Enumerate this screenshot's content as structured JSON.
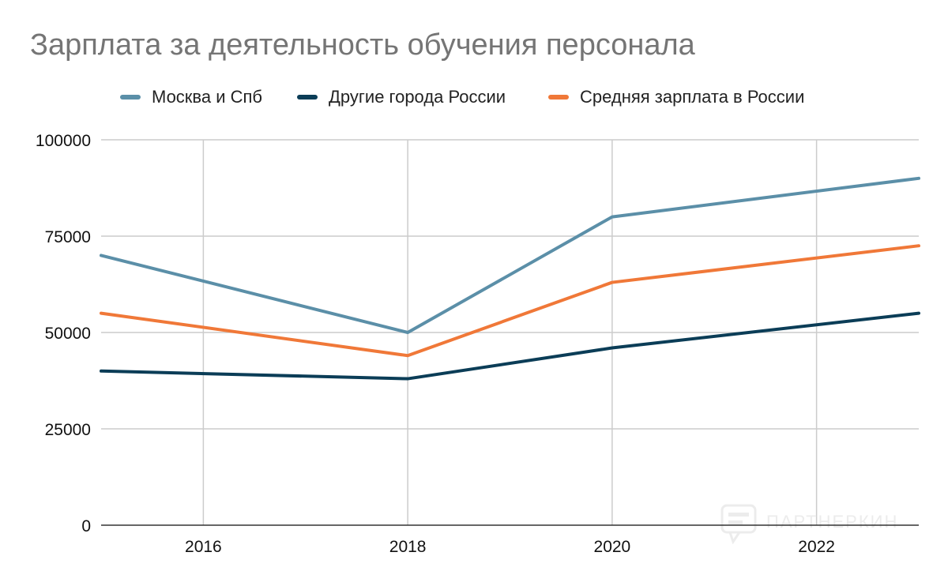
{
  "chart_data": {
    "type": "line",
    "title": "Зарплата за деятельность обучения персонала",
    "xlabel": "",
    "ylabel": "",
    "x": [
      2015,
      2018,
      2020,
      2023
    ],
    "xticks": [
      "2016",
      "2018",
      "2020",
      "2022"
    ],
    "xlim": [
      2015,
      2023
    ],
    "yticks": [
      "0",
      "25000",
      "50000",
      "75000",
      "100000"
    ],
    "ylim": [
      0,
      100000
    ],
    "grid": true,
    "legend_position": "top-left",
    "series": [
      {
        "name": "Москва и Спб",
        "color": "#5b8fa8",
        "values": [
          70000,
          50000,
          80000,
          90000
        ]
      },
      {
        "name": "Другие города России",
        "color": "#0b3d57",
        "values": [
          40000,
          38000,
          46000,
          55000
        ]
      },
      {
        "name": "Средняя зарплата в России",
        "color": "#f07838",
        "values": [
          55000,
          44000,
          63000,
          72500
        ]
      }
    ],
    "watermark": "ПАРТНЕРКИН"
  }
}
